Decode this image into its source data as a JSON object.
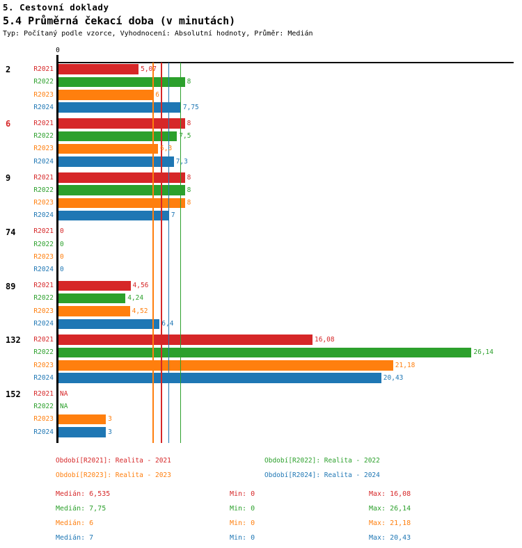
{
  "header": {
    "title": "5. Cestovní doklady",
    "subtitle": "5.4 Průměrná čekací doba (v minutách)",
    "meta": "Typ: Počítaný podle vzorce, Vyhodnocení: Absolutní hodnoty, Průměr: Medián"
  },
  "colors": {
    "R2021": "#d62728",
    "R2022": "#2ca02c",
    "R2023": "#ff7f0e",
    "R2024": "#1f77b4",
    "axis": "#000000",
    "highlighted_category": "#d62728"
  },
  "chart_data": {
    "type": "bar",
    "orientation": "horizontal",
    "title": "5.4 Průměrná čekací doba (v minutách)",
    "series_names": [
      "R2021",
      "R2022",
      "R2023",
      "R2024"
    ],
    "categories": [
      "2",
      "6",
      "9",
      "74",
      "89",
      "132",
      "152"
    ],
    "highlighted_categories": [
      "6"
    ],
    "axis": {
      "zero_label": "0",
      "xmin": 0,
      "xmax": 26.14,
      "grid": false
    },
    "groups": [
      {
        "category": "2",
        "highlight": false,
        "values": {
          "R2021": 5.07,
          "R2022": 8,
          "R2023": 6,
          "R2024": 7.75
        },
        "labels": {
          "R2021": "5,07",
          "R2022": "8",
          "R2023": "6",
          "R2024": "7,75"
        }
      },
      {
        "category": "6",
        "highlight": true,
        "values": {
          "R2021": 8,
          "R2022": 7.5,
          "R2023": 6.3,
          "R2024": 7.3
        },
        "labels": {
          "R2021": "8",
          "R2022": "7,5",
          "R2023": "6,3",
          "R2024": "7,3"
        }
      },
      {
        "category": "9",
        "highlight": false,
        "values": {
          "R2021": 8,
          "R2022": 8,
          "R2023": 8,
          "R2024": 7
        },
        "labels": {
          "R2021": "8",
          "R2022": "8",
          "R2023": "8",
          "R2024": "7"
        }
      },
      {
        "category": "74",
        "highlight": false,
        "values": {
          "R2021": 0,
          "R2022": 0,
          "R2023": 0,
          "R2024": 0
        },
        "labels": {
          "R2021": "0",
          "R2022": "0",
          "R2023": "0",
          "R2024": "0"
        }
      },
      {
        "category": "89",
        "highlight": false,
        "values": {
          "R2021": 4.56,
          "R2022": 4.24,
          "R2023": 4.52,
          "R2024": 6.4
        },
        "labels": {
          "R2021": "4,56",
          "R2022": "4,24",
          "R2023": "4,52",
          "R2024": "6,4"
        }
      },
      {
        "category": "132",
        "highlight": false,
        "values": {
          "R2021": 16.08,
          "R2022": 26.14,
          "R2023": 21.18,
          "R2024": 20.43
        },
        "labels": {
          "R2021": "16,08",
          "R2022": "26,14",
          "R2023": "21,18",
          "R2024": "20,43"
        }
      },
      {
        "category": "152",
        "highlight": false,
        "values": {
          "R2021": null,
          "R2022": null,
          "R2023": 3,
          "R2024": 3
        },
        "labels": {
          "R2021": "NA",
          "R2022": "NA",
          "R2023": "3",
          "R2024": "3"
        }
      }
    ],
    "median_lines": [
      {
        "series": "R2023",
        "value": 6
      },
      {
        "series": "R2021",
        "value": 6.535
      },
      {
        "series": "R2024",
        "value": 7
      },
      {
        "series": "R2022",
        "value": 7.75
      }
    ],
    "legend_position": "bottom"
  },
  "legend": {
    "items": [
      {
        "key": "R2021",
        "label": "Období[R2021]: Realita - 2021"
      },
      {
        "key": "R2022",
        "label": "Období[R2022]: Realita - 2022"
      },
      {
        "key": "R2023",
        "label": "Období[R2023]: Realita - 2023"
      },
      {
        "key": "R2024",
        "label": "Období[R2024]: Realita - 2024"
      }
    ]
  },
  "stats": {
    "rows": [
      {
        "key": "R2021",
        "median": "Medián: 6,535",
        "min": "Min: 0",
        "max": "Max: 16,08"
      },
      {
        "key": "R2022",
        "median": "Medián: 7,75",
        "min": "Min: 0",
        "max": "Max: 26,14"
      },
      {
        "key": "R2023",
        "median": "Medián: 6",
        "min": "Min: 0",
        "max": "Max: 21,18"
      },
      {
        "key": "R2024",
        "median": "Medián: 7",
        "min": "Min: 0",
        "max": "Max: 20,43"
      }
    ]
  }
}
